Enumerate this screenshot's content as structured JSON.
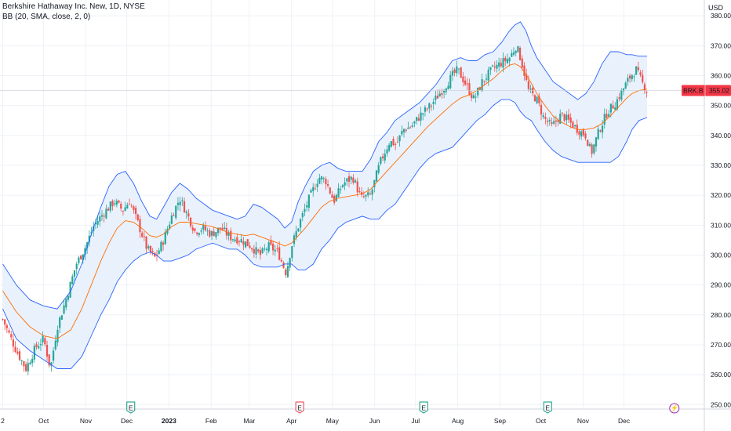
{
  "legend": {
    "symbol_line": "Berkshire Hathaway Inc. New, 1D, NYSE",
    "indicator_line": "BB (20, SMA, close, 2, 0)"
  },
  "currency": "USD",
  "price_label": {
    "symbol": "BRK.B",
    "value": "355.02"
  },
  "colors": {
    "up": "#26a69a",
    "down": "#ef5350",
    "band": "#2962ff",
    "basis": "#ff6d00",
    "band_fill": "#e9f1fc",
    "grid": "#eef1f6",
    "label_bg": "#f23645"
  },
  "events": [
    {
      "icon": "E",
      "type": "earnings",
      "color": "#089981",
      "x_day": 94
    },
    {
      "icon": "E",
      "type": "earnings",
      "color": "#f23645",
      "x_day": 218
    },
    {
      "icon": "E",
      "type": "earnings",
      "color": "#089981",
      "x_day": 309
    },
    {
      "icon": "E",
      "type": "earnings",
      "color": "#089981",
      "x_day": 400
    },
    {
      "icon": "⚡",
      "type": "split",
      "color": "#9c27b0",
      "x_day": 493
    }
  ],
  "chart_data": {
    "type": "candlestick",
    "symbol": "BRK.B",
    "timeframe": "1D",
    "y_ticks": [
      250,
      260,
      270,
      280,
      290,
      300,
      310,
      320,
      330,
      340,
      350,
      360,
      370,
      380
    ],
    "ylim": [
      248.5,
      385.3
    ],
    "xlim": [
      -2,
      515
    ],
    "x_ticks": [
      {
        "label": "2",
        "day": 0
      },
      {
        "label": "Oct",
        "day": 30
      },
      {
        "label": "Nov",
        "day": 61
      },
      {
        "label": "Dec",
        "day": 91
      },
      {
        "label": "2023",
        "day": 122,
        "bold": true
      },
      {
        "label": "Feb",
        "day": 153
      },
      {
        "label": "Mar",
        "day": 181
      },
      {
        "label": "Apr",
        "day": 212
      },
      {
        "label": "May",
        "day": 242
      },
      {
        "label": "Jun",
        "day": 273
      },
      {
        "label": "Jul",
        "day": 303
      },
      {
        "label": "Aug",
        "day": 334
      },
      {
        "label": "Sep",
        "day": 365
      },
      {
        "label": "Oct",
        "day": 395
      },
      {
        "label": "Nov",
        "day": 426
      },
      {
        "label": "Dec",
        "day": 456
      }
    ],
    "last_close": 355.02,
    "close": [
      [
        0,
        278.5
      ],
      [
        10,
        268
      ],
      [
        17,
        262
      ],
      [
        24,
        269
      ],
      [
        30,
        272
      ],
      [
        35,
        262
      ],
      [
        40,
        276
      ],
      [
        47,
        286
      ],
      [
        54,
        297
      ],
      [
        61,
        303
      ],
      [
        67,
        310
      ],
      [
        74,
        314
      ],
      [
        82,
        318
      ],
      [
        88,
        315
      ],
      [
        93,
        318
      ],
      [
        99,
        311
      ],
      [
        106,
        302
      ],
      [
        112,
        299
      ],
      [
        118,
        305
      ],
      [
        124,
        313
      ],
      [
        130,
        319
      ],
      [
        135,
        314
      ],
      [
        141,
        308
      ],
      [
        147,
        309
      ],
      [
        153,
        307
      ],
      [
        160,
        309
      ],
      [
        167,
        306
      ],
      [
        175,
        305
      ],
      [
        182,
        303
      ],
      [
        189,
        300
      ],
      [
        195,
        303
      ],
      [
        202,
        301
      ],
      [
        208,
        294
      ],
      [
        212,
        303
      ],
      [
        218,
        311
      ],
      [
        225,
        319
      ],
      [
        232,
        326
      ],
      [
        237,
        325
      ],
      [
        243,
        318
      ],
      [
        250,
        324
      ],
      [
        257,
        326
      ],
      [
        263,
        319
      ],
      [
        270,
        320
      ],
      [
        277,
        331
      ],
      [
        284,
        338
      ],
      [
        289,
        337
      ],
      [
        294,
        342
      ],
      [
        300,
        343
      ],
      [
        307,
        347
      ],
      [
        314,
        350
      ],
      [
        319,
        353
      ],
      [
        324,
        356
      ],
      [
        330,
        360
      ],
      [
        334,
        362
      ],
      [
        340,
        357
      ],
      [
        346,
        352
      ],
      [
        352,
        358
      ],
      [
        359,
        362
      ],
      [
        365,
        364
      ],
      [
        372,
        366
      ],
      [
        377,
        370
      ],
      [
        380,
        366
      ],
      [
        386,
        355
      ],
      [
        392,
        352
      ],
      [
        397,
        346
      ],
      [
        403,
        343
      ],
      [
        410,
        347
      ],
      [
        415,
        345
      ],
      [
        422,
        342
      ],
      [
        428,
        340
      ],
      [
        432,
        334
      ],
      [
        438,
        342
      ],
      [
        444,
        348
      ],
      [
        450,
        351
      ],
      [
        456,
        356
      ],
      [
        461,
        360
      ],
      [
        465,
        362
      ],
      [
        470,
        357
      ],
      [
        473,
        355
      ]
    ],
    "upper": [
      [
        0,
        297
      ],
      [
        10,
        290
      ],
      [
        20,
        285
      ],
      [
        30,
        283
      ],
      [
        40,
        282
      ],
      [
        50,
        288
      ],
      [
        58,
        297
      ],
      [
        65,
        307
      ],
      [
        72,
        316
      ],
      [
        78,
        323
      ],
      [
        84,
        327
      ],
      [
        90,
        328
      ],
      [
        96,
        324
      ],
      [
        102,
        318
      ],
      [
        108,
        313
      ],
      [
        113,
        312
      ],
      [
        118,
        316
      ],
      [
        124,
        321
      ],
      [
        130,
        324
      ],
      [
        136,
        322
      ],
      [
        142,
        319
      ],
      [
        148,
        317
      ],
      [
        154,
        315
      ],
      [
        160,
        314
      ],
      [
        166,
        313
      ],
      [
        172,
        312
      ],
      [
        178,
        313
      ],
      [
        184,
        317
      ],
      [
        190,
        316
      ],
      [
        196,
        314
      ],
      [
        202,
        312
      ],
      [
        207,
        309
      ],
      [
        212,
        311
      ],
      [
        217,
        318
      ],
      [
        222,
        323
      ],
      [
        228,
        328
      ],
      [
        234,
        330
      ],
      [
        240,
        331
      ],
      [
        246,
        329
      ],
      [
        252,
        328
      ],
      [
        258,
        328
      ],
      [
        264,
        328
      ],
      [
        270,
        332
      ],
      [
        276,
        338
      ],
      [
        282,
        341
      ],
      [
        288,
        345
      ],
      [
        294,
        347
      ],
      [
        300,
        349
      ],
      [
        306,
        351
      ],
      [
        312,
        354
      ],
      [
        318,
        357
      ],
      [
        324,
        361
      ],
      [
        330,
        365
      ],
      [
        336,
        366
      ],
      [
        342,
        365
      ],
      [
        348,
        365
      ],
      [
        354,
        367
      ],
      [
        360,
        368
      ],
      [
        366,
        371
      ],
      [
        372,
        375
      ],
      [
        376,
        377
      ],
      [
        380,
        378
      ],
      [
        384,
        375
      ],
      [
        388,
        370
      ],
      [
        392,
        366
      ],
      [
        398,
        362
      ],
      [
        404,
        358
      ],
      [
        410,
        356
      ],
      [
        416,
        354
      ],
      [
        422,
        352
      ],
      [
        428,
        354
      ],
      [
        434,
        358
      ],
      [
        440,
        364
      ],
      [
        446,
        368
      ],
      [
        452,
        368
      ],
      [
        458,
        367
      ],
      [
        462,
        367
      ],
      [
        467,
        366.5
      ],
      [
        473,
        366.5
      ]
    ],
    "basis": [
      [
        0,
        288
      ],
      [
        10,
        281
      ],
      [
        20,
        276
      ],
      [
        30,
        273
      ],
      [
        40,
        272
      ],
      [
        50,
        275
      ],
      [
        58,
        282
      ],
      [
        65,
        290
      ],
      [
        72,
        298
      ],
      [
        78,
        304
      ],
      [
        84,
        309
      ],
      [
        90,
        311.5
      ],
      [
        96,
        311
      ],
      [
        102,
        309
      ],
      [
        108,
        306.5
      ],
      [
        113,
        306
      ],
      [
        118,
        307
      ],
      [
        124,
        309.5
      ],
      [
        130,
        311
      ],
      [
        136,
        311
      ],
      [
        142,
        310.5
      ],
      [
        148,
        310
      ],
      [
        154,
        309.5
      ],
      [
        160,
        308.5
      ],
      [
        166,
        307.5
      ],
      [
        172,
        307
      ],
      [
        178,
        306.5
      ],
      [
        184,
        307
      ],
      [
        190,
        306
      ],
      [
        196,
        305
      ],
      [
        202,
        304
      ],
      [
        207,
        303
      ],
      [
        212,
        304
      ],
      [
        217,
        306.5
      ],
      [
        222,
        309
      ],
      [
        228,
        312.5
      ],
      [
        234,
        316
      ],
      [
        240,
        318
      ],
      [
        246,
        319
      ],
      [
        252,
        319.5
      ],
      [
        258,
        320
      ],
      [
        264,
        320.5
      ],
      [
        270,
        322
      ],
      [
        276,
        325
      ],
      [
        282,
        328
      ],
      [
        288,
        331
      ],
      [
        294,
        334
      ],
      [
        300,
        337
      ],
      [
        306,
        340
      ],
      [
        312,
        343
      ],
      [
        318,
        345.5
      ],
      [
        324,
        348
      ],
      [
        330,
        350.5
      ],
      [
        336,
        352.5
      ],
      [
        342,
        353.5
      ],
      [
        348,
        355
      ],
      [
        354,
        357
      ],
      [
        360,
        359
      ],
      [
        366,
        361.5
      ],
      [
        372,
        363.5
      ],
      [
        376,
        364
      ],
      [
        380,
        363
      ],
      [
        384,
        360.5
      ],
      [
        388,
        357.5
      ],
      [
        392,
        354
      ],
      [
        398,
        350
      ],
      [
        404,
        346.5
      ],
      [
        410,
        344.5
      ],
      [
        416,
        343
      ],
      [
        422,
        342
      ],
      [
        428,
        342
      ],
      [
        434,
        342.5
      ],
      [
        440,
        344
      ],
      [
        446,
        346.5
      ],
      [
        452,
        349.5
      ],
      [
        458,
        352.5
      ],
      [
        462,
        354
      ],
      [
        467,
        355
      ],
      [
        473,
        355.5
      ]
    ],
    "lower": [
      [
        0,
        282
      ],
      [
        10,
        272
      ],
      [
        20,
        268
      ],
      [
        30,
        265
      ],
      [
        40,
        262
      ],
      [
        50,
        262
      ],
      [
        58,
        266
      ],
      [
        65,
        273
      ],
      [
        72,
        280
      ],
      [
        78,
        285
      ],
      [
        84,
        291
      ],
      [
        90,
        295
      ],
      [
        96,
        298
      ],
      [
        102,
        300
      ],
      [
        108,
        301
      ],
      [
        113,
        300
      ],
      [
        118,
        298
      ],
      [
        124,
        298
      ],
      [
        130,
        299
      ],
      [
        136,
        300
      ],
      [
        142,
        302
      ],
      [
        148,
        303
      ],
      [
        154,
        304
      ],
      [
        160,
        303
      ],
      [
        166,
        302
      ],
      [
        172,
        302
      ],
      [
        178,
        300
      ],
      [
        184,
        297
      ],
      [
        190,
        296
      ],
      [
        196,
        296
      ],
      [
        202,
        296
      ],
      [
        207,
        297
      ],
      [
        212,
        297
      ],
      [
        217,
        295
      ],
      [
        222,
        295
      ],
      [
        228,
        297
      ],
      [
        234,
        302
      ],
      [
        240,
        305
      ],
      [
        246,
        309
      ],
      [
        252,
        311
      ],
      [
        258,
        312
      ],
      [
        264,
        313
      ],
      [
        270,
        312
      ],
      [
        276,
        312
      ],
      [
        282,
        315
      ],
      [
        288,
        317
      ],
      [
        294,
        321
      ],
      [
        300,
        325
      ],
      [
        306,
        329
      ],
      [
        312,
        332
      ],
      [
        318,
        334
      ],
      [
        324,
        335
      ],
      [
        330,
        336
      ],
      [
        336,
        339
      ],
      [
        342,
        342
      ],
      [
        348,
        345
      ],
      [
        354,
        347
      ],
      [
        360,
        350
      ],
      [
        366,
        352
      ],
      [
        372,
        352
      ],
      [
        376,
        351
      ],
      [
        380,
        348
      ],
      [
        384,
        346
      ],
      [
        388,
        345
      ],
      [
        392,
        342
      ],
      [
        398,
        338
      ],
      [
        404,
        335
      ],
      [
        410,
        333
      ],
      [
        416,
        332
      ],
      [
        422,
        331
      ],
      [
        428,
        331
      ],
      [
        434,
        331
      ],
      [
        440,
        331
      ],
      [
        446,
        331
      ],
      [
        452,
        333
      ],
      [
        458,
        338
      ],
      [
        462,
        342
      ],
      [
        467,
        345
      ],
      [
        473,
        346
      ]
    ]
  }
}
